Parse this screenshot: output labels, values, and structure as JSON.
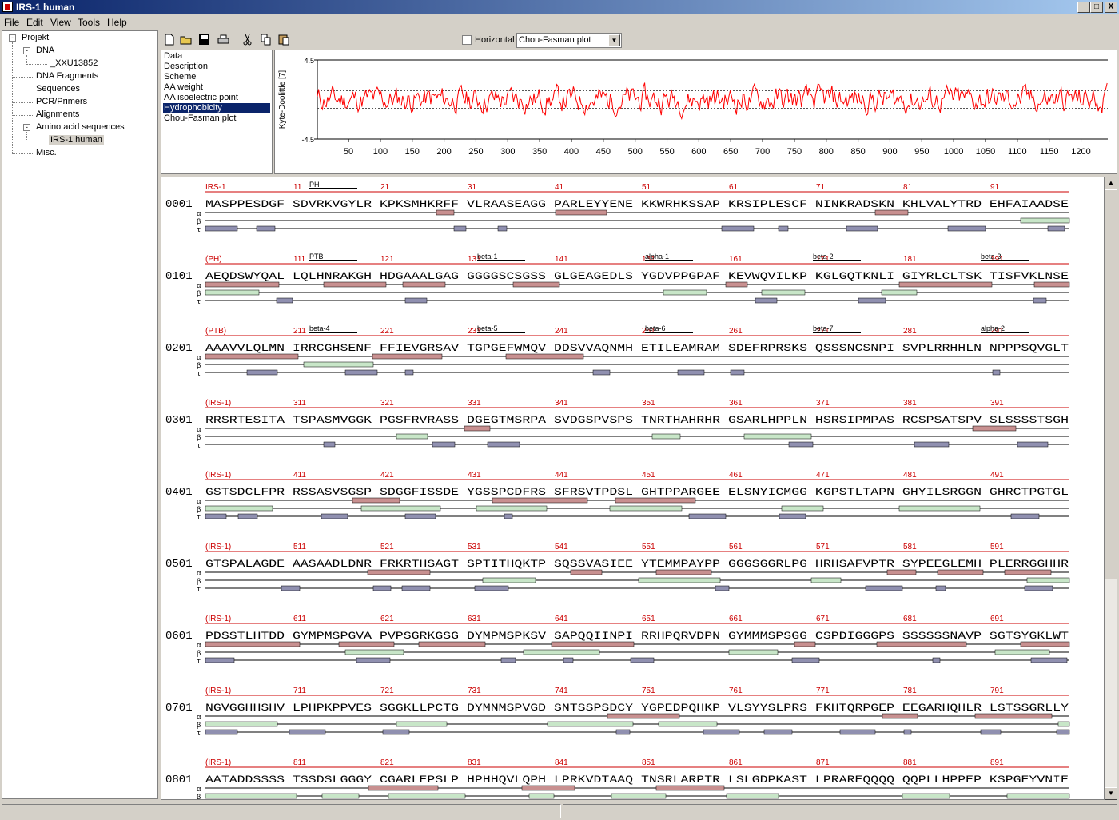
{
  "window": {
    "title": "IRS-1 human",
    "min": "_",
    "max": "□",
    "close": "X"
  },
  "menu": [
    "File",
    "Edit",
    "View",
    "Tools",
    "Help"
  ],
  "tree": {
    "root": "Projekt",
    "dna": "DNA",
    "dna_item": "_XXU13852",
    "items": [
      "DNA Fragments",
      "Sequences",
      "PCR/Primers",
      "Alignments",
      "Amino acid sequences"
    ],
    "selected": "IRS-1 human",
    "misc": "Misc."
  },
  "toolbar": {
    "horizontal_label": "Horizontal",
    "combo_value": "Chou-Fasman plot"
  },
  "properties": [
    "Data",
    "Description",
    "Scheme",
    "AA weight",
    "AA isoelectric point",
    "Hydrophobicity",
    "Chou-Fasman plot"
  ],
  "properties_selected": 5,
  "chart_data": {
    "type": "line",
    "ylabel": "Kyte-Doolittle [7]",
    "ymax_label": "4.5",
    "ymin_label": "-4.5",
    "ylim": [
      -4.5,
      4.5
    ],
    "xlim": [
      1,
      1242
    ],
    "x_ticks": [
      50,
      100,
      150,
      200,
      250,
      300,
      350,
      400,
      450,
      500,
      550,
      600,
      650,
      700,
      750,
      800,
      850,
      900,
      950,
      1000,
      1050,
      1100,
      1150,
      1200
    ],
    "grid": "dotted horizontal",
    "color": "#ff0000",
    "note_values": "approximate hydropathy profile, range about -2 to +2"
  },
  "seq_label": "IRS-1",
  "seq_label_paren": "(IRS-1)",
  "rows": [
    {
      "num": "0001",
      "label": "IRS-1",
      "ticks": [
        "11",
        "21",
        "31",
        "41",
        "51",
        "61",
        "71",
        "81",
        "91"
      ],
      "seq": "MASPPESDGF SDVRKVGYLR KPKSMHKRFF VLRAASEAGG PARLEYYENE KKWRHKSSAP KRSIPLESCF NINKRADSKN KHLVALYTRD EHFAIAADSE",
      "domains": [
        "PH"
      ]
    },
    {
      "num": "0101",
      "label": "(PH)",
      "ticks": [
        "111",
        "121",
        "131",
        "141",
        "151",
        "161",
        "171",
        "181",
        "191"
      ],
      "seq": "AEQDSWYQAL LQLHNRAKGH HDGAAALGAG GGGGSCSGSS GLGEAGEDLS YGDVPPGPAF KEVWQVILKP KGLGQTKNLI GIYRLCLTSK TISFVKLNSE",
      "domains": [
        "PTB",
        "beta-1",
        "alpha-1",
        "beta-2",
        "beta-3"
      ]
    },
    {
      "num": "0201",
      "label": "(PTB)",
      "ticks": [
        "211",
        "221",
        "231",
        "241",
        "251",
        "261",
        "271",
        "281",
        "291"
      ],
      "seq": "AAAVVLQLMN IRRCGHSENF FFIEVGRSAV TGPGEFWMQV DDSVVAQNMH ETILEAMRAM SDEFRPRSKS QSSSNCSNPI SVPLRRHHLN NPPPSQVGLT",
      "domains": [
        "beta-4",
        "beta-5",
        "beta-6",
        "beta-7",
        "alpha-2"
      ]
    },
    {
      "num": "0301",
      "label": "(IRS-1)",
      "ticks": [
        "311",
        "321",
        "331",
        "341",
        "351",
        "361",
        "371",
        "381",
        "391"
      ],
      "seq": "RRSRTESITA TSPASMVGGK PGSFRVRASS DGEGTMSRPA SVDGSPVSPS TNRTHAHRHR GSARLHPPLN HSRSIPMPAS RCSPSATSPV SLSSSSTSGH",
      "domains": []
    },
    {
      "num": "0401",
      "label": "(IRS-1)",
      "ticks": [
        "411",
        "421",
        "431",
        "441",
        "451",
        "461",
        "471",
        "481",
        "491"
      ],
      "seq": "GSTSDCLFPR RSSASVSGSP SDGGFISSDE YGSSPCDFRS SFRSVTPDSL GHTPPARGEE ELSNYICMGG KGPSTLTAPN GHYILSRGGN GHRCTPGTGL",
      "domains": []
    },
    {
      "num": "0501",
      "label": "(IRS-1)",
      "ticks": [
        "511",
        "521",
        "531",
        "541",
        "551",
        "561",
        "571",
        "581",
        "591"
      ],
      "seq": "GTSPALAGDE AASAADLDNR FRKRTHSAGT SPTITHQKTP SQSSVASIEE YTEMMPAYPP GGGSGGRLPG HRHSAFVPTR SYPEEGLEMH PLERRGGHHR",
      "domains": []
    },
    {
      "num": "0601",
      "label": "(IRS-1)",
      "ticks": [
        "611",
        "621",
        "631",
        "641",
        "651",
        "661",
        "671",
        "681",
        "691"
      ],
      "seq": "PDSSTLHTDD GYMPMSPGVA PVPSGRKGSG DYMPMSPKSV SAPQQIINPI RRHPQRVDPN GYMMMSPSGG CSPDIGGGPS SSSSSSNAVP SGTSYGKLWT",
      "domains": []
    },
    {
      "num": "0701",
      "label": "(IRS-1)",
      "ticks": [
        "711",
        "721",
        "731",
        "741",
        "751",
        "761",
        "771",
        "781",
        "791"
      ],
      "seq": "NGVGGHHSHV LPHPKPPVES SGGKLLPCTG DYMNMSPVGD SNTSSPSDCY YGPEDPQHKP VLSYYSLPRS FKHTQRPGEP EEGARHQHLR LSTSSGRLLY",
      "domains": []
    },
    {
      "num": "0801",
      "label": "(IRS-1)",
      "ticks": [
        "811",
        "821",
        "831",
        "841",
        "851",
        "861",
        "871",
        "881",
        "891"
      ],
      "seq": "AATADDSSSS TSSDSLGGGY CGARLEPSLP HPHHQVLQPH LPRKVDTAAQ TNSRLARPTR LSLGDPKAST LPRAREQQQQ QQPLLHPPEP KSPGEYVNIE",
      "domains": []
    }
  ],
  "colors": {
    "helix": "#c8e6c8",
    "strand": "#c89090",
    "turn": "#9090b0",
    "label": "#cc0000",
    "selection": "#0a246a"
  }
}
